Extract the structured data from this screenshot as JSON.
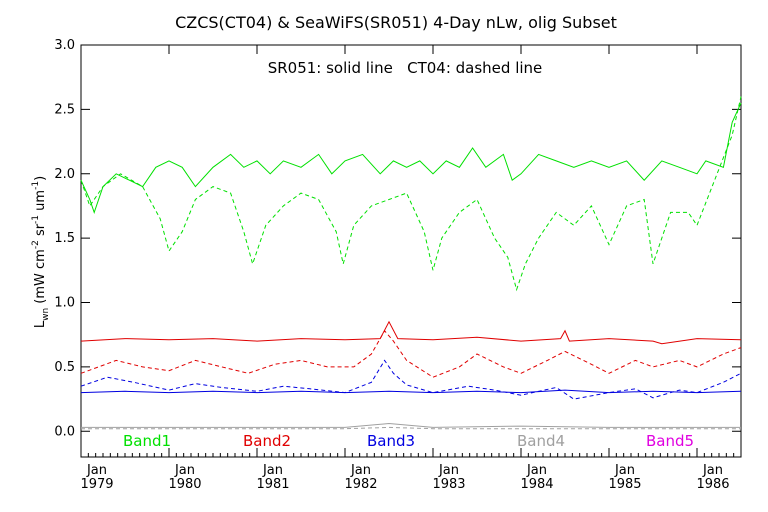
{
  "chart_data": {
    "type": "line",
    "title": "CZCS(CT04) & SeaWiFS(SR051) 4-Day nLw, olig Subset",
    "annotation": "SR051: solid line   CT04: dashed line",
    "ylabel_parts": {
      "base": "L",
      "sub": "wn",
      "open": " (mW cm",
      "sup1": "-2",
      "mid": " sr",
      "sup2": "-1",
      "end": " um",
      "sup3": "-1",
      "close": ")"
    },
    "ylim": [
      -0.2,
      3.0
    ],
    "xlim": [
      1979.0,
      1986.5
    ],
    "yticks": [
      "0.0",
      "0.5",
      "1.0",
      "1.5",
      "2.0",
      "2.5",
      "3.0"
    ],
    "xticks": [
      {
        "month": "Jan",
        "year": "1979"
      },
      {
        "month": "Jan",
        "year": "1980"
      },
      {
        "month": "Jan",
        "year": "1981"
      },
      {
        "month": "Jan",
        "year": "1982"
      },
      {
        "month": "Jan",
        "year": "1983"
      },
      {
        "month": "Jan",
        "year": "1984"
      },
      {
        "month": "Jan",
        "year": "1985"
      },
      {
        "month": "Jan",
        "year": "1986"
      }
    ],
    "legend": [
      {
        "name": "Band1",
        "color": "#00e000"
      },
      {
        "name": "Band2",
        "color": "#e00000"
      },
      {
        "name": "Band3",
        "color": "#0000e0"
      },
      {
        "name": "Band4",
        "color": "#a0a0a0"
      },
      {
        "name": "Band5",
        "color": "#e000e0"
      }
    ],
    "series": [
      {
        "band": "Band1",
        "style": "solid",
        "color": "#00e000",
        "x": [
          1979.0,
          1979.1,
          1979.15,
          1979.25,
          1979.4,
          1979.55,
          1979.7,
          1979.85,
          1980.0,
          1980.15,
          1980.3,
          1980.5,
          1980.7,
          1980.85,
          1981.0,
          1981.15,
          1981.3,
          1981.5,
          1981.7,
          1981.85,
          1982.0,
          1982.2,
          1982.4,
          1982.55,
          1982.7,
          1982.85,
          1983.0,
          1983.15,
          1983.3,
          1983.45,
          1983.6,
          1983.8,
          1983.9,
          1984.0,
          1984.2,
          1984.4,
          1984.6,
          1984.8,
          1985.0,
          1985.2,
          1985.4,
          1985.6,
          1985.8,
          1986.0,
          1986.1,
          1986.3,
          1986.4,
          1986.5
        ],
        "y": [
          1.95,
          1.8,
          1.7,
          1.9,
          2.0,
          1.95,
          1.9,
          2.05,
          2.1,
          2.05,
          1.9,
          2.05,
          2.15,
          2.05,
          2.1,
          2.0,
          2.1,
          2.05,
          2.15,
          2.0,
          2.1,
          2.15,
          2.0,
          2.1,
          2.05,
          2.1,
          2.0,
          2.1,
          2.05,
          2.2,
          2.05,
          2.15,
          1.95,
          2.0,
          2.15,
          2.1,
          2.05,
          2.1,
          2.05,
          2.1,
          1.95,
          2.1,
          2.05,
          2.0,
          2.1,
          2.05,
          2.4,
          2.55
        ]
      },
      {
        "band": "Band1",
        "style": "dashed",
        "color": "#00e000",
        "x": [
          1979.0,
          1979.1,
          1979.25,
          1979.45,
          1979.7,
          1979.9,
          1980.0,
          1980.15,
          1980.3,
          1980.5,
          1980.7,
          1980.85,
          1980.95,
          1981.1,
          1981.3,
          1981.5,
          1981.7,
          1981.9,
          1981.98,
          1982.1,
          1982.3,
          1982.5,
          1982.7,
          1982.9,
          1983.0,
          1983.1,
          1983.3,
          1983.5,
          1983.7,
          1983.85,
          1983.95,
          1984.05,
          1984.2,
          1984.4,
          1984.6,
          1984.8,
          1985.0,
          1985.2,
          1985.4,
          1985.5,
          1985.7,
          1985.9,
          1986.0,
          1986.2,
          1986.4,
          1986.5
        ],
        "y": [
          1.95,
          1.75,
          1.9,
          2.0,
          1.9,
          1.65,
          1.4,
          1.55,
          1.8,
          1.9,
          1.85,
          1.55,
          1.3,
          1.6,
          1.75,
          1.85,
          1.8,
          1.55,
          1.3,
          1.6,
          1.75,
          1.8,
          1.85,
          1.55,
          1.25,
          1.5,
          1.7,
          1.8,
          1.5,
          1.35,
          1.1,
          1.3,
          1.5,
          1.7,
          1.6,
          1.75,
          1.45,
          1.75,
          1.8,
          1.3,
          1.7,
          1.7,
          1.6,
          1.95,
          2.3,
          2.6
        ]
      },
      {
        "band": "Band2",
        "style": "solid",
        "color": "#e00000",
        "x": [
          1979.0,
          1979.5,
          1980.0,
          1980.5,
          1981.0,
          1981.5,
          1982.0,
          1982.4,
          1982.5,
          1982.6,
          1983.0,
          1983.5,
          1984.0,
          1984.45,
          1984.5,
          1984.55,
          1985.0,
          1985.5,
          1985.6,
          1986.0,
          1986.5
        ],
        "y": [
          0.7,
          0.72,
          0.71,
          0.72,
          0.7,
          0.72,
          0.71,
          0.72,
          0.85,
          0.72,
          0.71,
          0.73,
          0.7,
          0.72,
          0.78,
          0.7,
          0.72,
          0.7,
          0.68,
          0.72,
          0.71
        ]
      },
      {
        "band": "Band2",
        "style": "dashed",
        "color": "#e00000",
        "x": [
          1979.0,
          1979.2,
          1979.4,
          1979.7,
          1980.0,
          1980.3,
          1980.6,
          1980.9,
          1981.2,
          1981.5,
          1981.8,
          1982.1,
          1982.3,
          1982.45,
          1982.55,
          1982.7,
          1983.0,
          1983.3,
          1983.5,
          1983.8,
          1984.0,
          1984.3,
          1984.5,
          1984.8,
          1985.0,
          1985.3,
          1985.5,
          1985.8,
          1986.0,
          1986.3,
          1986.5
        ],
        "y": [
          0.45,
          0.5,
          0.55,
          0.5,
          0.47,
          0.55,
          0.5,
          0.45,
          0.52,
          0.55,
          0.5,
          0.5,
          0.6,
          0.78,
          0.7,
          0.55,
          0.42,
          0.5,
          0.6,
          0.5,
          0.45,
          0.55,
          0.62,
          0.52,
          0.45,
          0.55,
          0.5,
          0.55,
          0.5,
          0.6,
          0.65
        ]
      },
      {
        "band": "Band3",
        "style": "solid",
        "color": "#0000e0",
        "x": [
          1979.0,
          1979.5,
          1980.0,
          1980.5,
          1981.0,
          1981.5,
          1982.0,
          1982.5,
          1983.0,
          1983.5,
          1984.0,
          1984.5,
          1985.0,
          1985.5,
          1986.0,
          1986.5
        ],
        "y": [
          0.3,
          0.31,
          0.3,
          0.31,
          0.3,
          0.31,
          0.3,
          0.31,
          0.3,
          0.31,
          0.3,
          0.32,
          0.3,
          0.31,
          0.3,
          0.31
        ]
      },
      {
        "band": "Band3",
        "style": "dashed",
        "color": "#0000e0",
        "x": [
          1979.0,
          1979.3,
          1979.6,
          1980.0,
          1980.3,
          1980.6,
          1981.0,
          1981.3,
          1981.6,
          1982.0,
          1982.3,
          1982.45,
          1982.55,
          1982.7,
          1983.0,
          1983.4,
          1983.7,
          1984.0,
          1984.4,
          1984.6,
          1985.0,
          1985.3,
          1985.5,
          1985.8,
          1986.0,
          1986.3,
          1986.5
        ],
        "y": [
          0.35,
          0.42,
          0.38,
          0.32,
          0.37,
          0.34,
          0.31,
          0.35,
          0.33,
          0.3,
          0.38,
          0.55,
          0.45,
          0.36,
          0.3,
          0.35,
          0.32,
          0.28,
          0.34,
          0.25,
          0.3,
          0.33,
          0.26,
          0.32,
          0.3,
          0.38,
          0.45
        ]
      },
      {
        "band": "Band4",
        "style": "solid",
        "color": "#a0a0a0",
        "x": [
          1979.0,
          1980.0,
          1981.0,
          1982.0,
          1982.5,
          1983.0,
          1984.0,
          1985.0,
          1986.0,
          1986.5
        ],
        "y": [
          0.03,
          0.03,
          0.03,
          0.03,
          0.06,
          0.03,
          0.04,
          0.03,
          0.03,
          0.03
        ]
      },
      {
        "band": "Band4",
        "style": "dashed",
        "color": "#a0a0a0",
        "x": [
          1979.0,
          1980.0,
          1981.0,
          1982.0,
          1982.5,
          1983.0,
          1984.0,
          1985.0,
          1986.0,
          1986.5
        ],
        "y": [
          0.02,
          0.02,
          0.02,
          0.02,
          0.03,
          0.02,
          0.02,
          0.02,
          0.02,
          0.02
        ]
      }
    ]
  }
}
